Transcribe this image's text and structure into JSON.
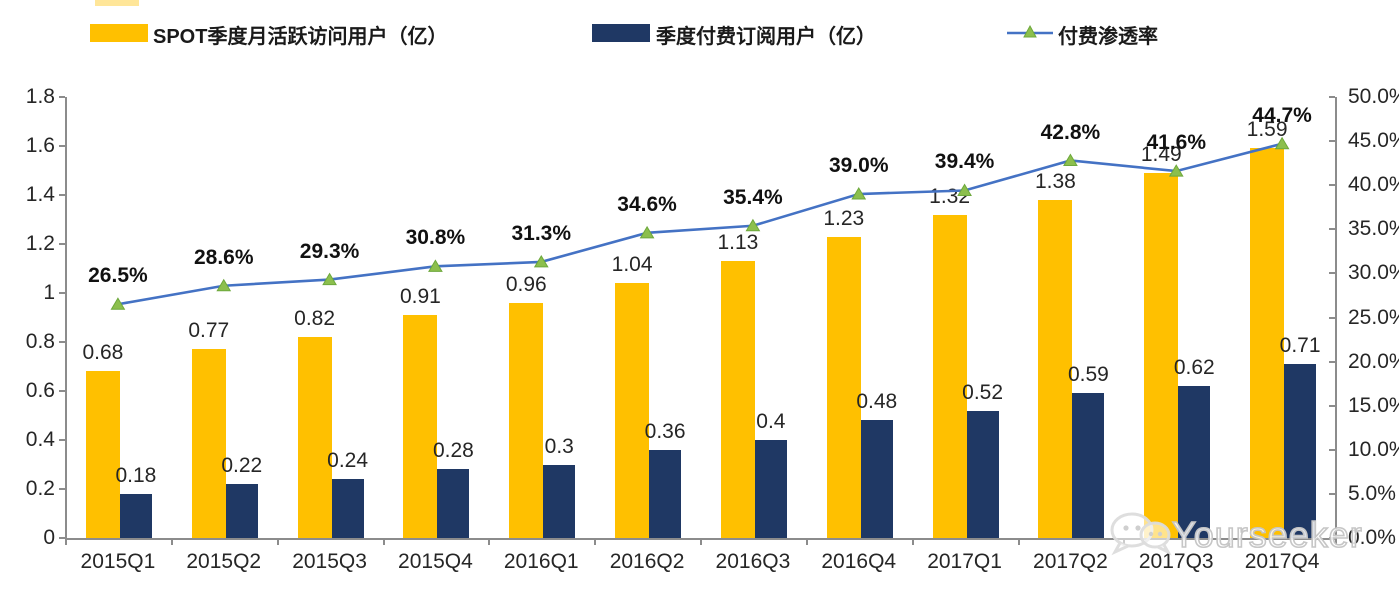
{
  "legend": {
    "items": [
      {
        "label": "SPOT季度月活跃访问用户（亿）",
        "type": "bar",
        "color": "#FFC000"
      },
      {
        "label": "季度付费订阅用户（亿）",
        "type": "bar",
        "color": "#1F3864"
      },
      {
        "label": "付费渗透率",
        "type": "line",
        "color": "#4472C4",
        "marker_color": "#8CBF4D"
      }
    ]
  },
  "chart_data": {
    "type": "combo",
    "title": "",
    "categories": [
      "2015Q1",
      "2015Q2",
      "2015Q3",
      "2015Q4",
      "2016Q1",
      "2016Q2",
      "2016Q3",
      "2016Q4",
      "2017Q1",
      "2017Q2",
      "2017Q3",
      "2017Q4"
    ],
    "series": [
      {
        "name": "SPOT季度月活跃访问用户（亿）",
        "type": "bar",
        "axis": "left",
        "color": "#FFC000",
        "values": [
          0.68,
          0.77,
          0.82,
          0.91,
          0.96,
          1.04,
          1.13,
          1.23,
          1.32,
          1.38,
          1.49,
          1.59
        ],
        "labels": [
          "0.68",
          "0.77",
          "0.82",
          "0.91",
          "0.96",
          "1.04",
          "1.13",
          "1.23",
          "1.32",
          "1.38",
          "1.49",
          "1.59"
        ]
      },
      {
        "name": "季度付费订阅用户（亿）",
        "type": "bar",
        "axis": "left",
        "color": "#1F3864",
        "values": [
          0.18,
          0.22,
          0.24,
          0.28,
          0.3,
          0.36,
          0.4,
          0.48,
          0.52,
          0.59,
          0.62,
          0.71
        ],
        "labels": [
          "0.18",
          "0.22",
          "0.24",
          "0.28",
          "0.3",
          "0.36",
          "0.4",
          "0.48",
          "0.52",
          "0.59",
          "0.62",
          "0.71"
        ]
      },
      {
        "name": "付费渗透率",
        "type": "line",
        "axis": "right",
        "color": "#4472C4",
        "marker": "triangle",
        "marker_color": "#8CBF4D",
        "marker_edge": "#6DA83C",
        "values": [
          26.5,
          28.6,
          29.3,
          30.8,
          31.3,
          34.6,
          35.4,
          39.0,
          39.4,
          42.8,
          41.6,
          44.7
        ],
        "labels": [
          "26.5%",
          "28.6%",
          "29.3%",
          "30.8%",
          "31.3%",
          "34.6%",
          "35.4%",
          "39.0%",
          "39.4%",
          "42.8%",
          "41.6%",
          "44.7%"
        ]
      }
    ],
    "left_axis": {
      "min": 0,
      "max": 1.8,
      "tick_values": [
        0,
        0.2,
        0.4,
        0.6,
        0.8,
        1,
        1.2,
        1.4,
        1.6,
        1.8
      ],
      "tick_labels": [
        "0",
        "0.2",
        "0.4",
        "0.6",
        "0.8",
        "1",
        "1.2",
        "1.4",
        "1.6",
        "1.8"
      ]
    },
    "right_axis": {
      "min": 0,
      "max": 50,
      "tick_values": [
        0,
        5,
        10,
        15,
        20,
        25,
        30,
        35,
        40,
        45,
        50
      ],
      "tick_labels": [
        "0.0%",
        "5.0%",
        "10.0%",
        "15.0%",
        "20.0%",
        "25.0%",
        "30.0%",
        "35.0%",
        "40.0%",
        "45.0%",
        "50.0%"
      ]
    },
    "grid": false,
    "legend_position": "top"
  },
  "watermark": {
    "text": "Yourseeker",
    "icon": "wechat-icon"
  },
  "colors": {
    "axis": "#8c8c8c",
    "text": "#262626",
    "watermark_stroke": "#c6c6c6"
  }
}
